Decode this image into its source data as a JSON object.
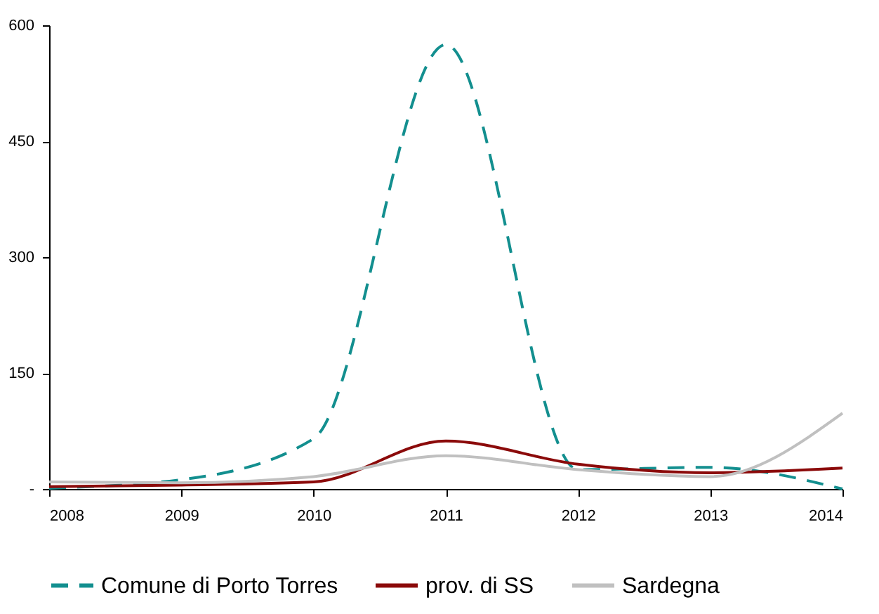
{
  "chart_data": {
    "type": "line",
    "x": [
      2008,
      2009,
      2010,
      2011,
      2012,
      2013,
      2014
    ],
    "xlim": [
      2008,
      2014
    ],
    "xticks": [
      2008,
      2009,
      2010,
      2011,
      2012,
      2013,
      2014
    ],
    "ylim": [
      0,
      600
    ],
    "yticks": [
      {
        "value": 0,
        "label": "-"
      },
      150,
      300,
      450,
      600
    ],
    "grid": false,
    "legend": "bottom",
    "marker": "none",
    "series": [
      {
        "name": "Comune di Porto Torres",
        "color": "#138f8f",
        "line_style": "dashed",
        "values": [
          1,
          12,
          65,
          575,
          25,
          28,
          0
        ]
      },
      {
        "name": "prov. di SS",
        "color": "#8b0a0a",
        "line_style": "solid",
        "values": [
          3,
          5,
          9,
          62,
          32,
          21,
          27
        ]
      },
      {
        "name": "Sardegna",
        "color": "#c0c0c0",
        "line_style": "solid",
        "values": [
          9,
          8,
          16,
          43,
          25,
          16,
          98
        ]
      }
    ]
  }
}
